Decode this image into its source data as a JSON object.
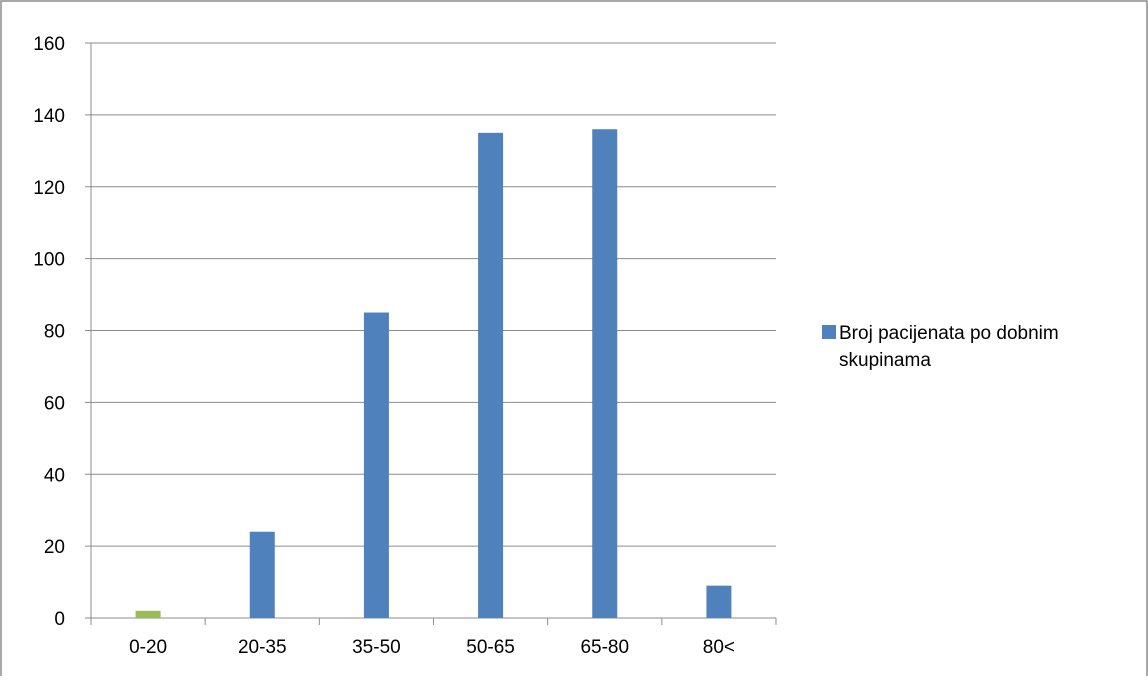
{
  "chart_data": {
    "type": "bar",
    "title": "",
    "xlabel": "",
    "ylabel": "",
    "categories": [
      "0-20",
      "20-35",
      "35-50",
      "50-65",
      "65-80",
      "80<"
    ],
    "series": [
      {
        "name": "Broj pacijenata po dobnim skupinama",
        "color": "#4f81bd",
        "values": [
          2,
          24,
          85,
          135,
          136,
          9
        ]
      }
    ],
    "highlight": {
      "category_index": 0,
      "color": "#9bbb59"
    },
    "ylim": [
      0,
      160
    ],
    "yticks": [
      0,
      20,
      40,
      60,
      80,
      100,
      120,
      140,
      160
    ],
    "ytick_labels": [
      "0",
      "20",
      "40",
      "60",
      "80",
      "100",
      "120",
      "140",
      "160"
    ],
    "grid": true,
    "legend_position": "right"
  }
}
